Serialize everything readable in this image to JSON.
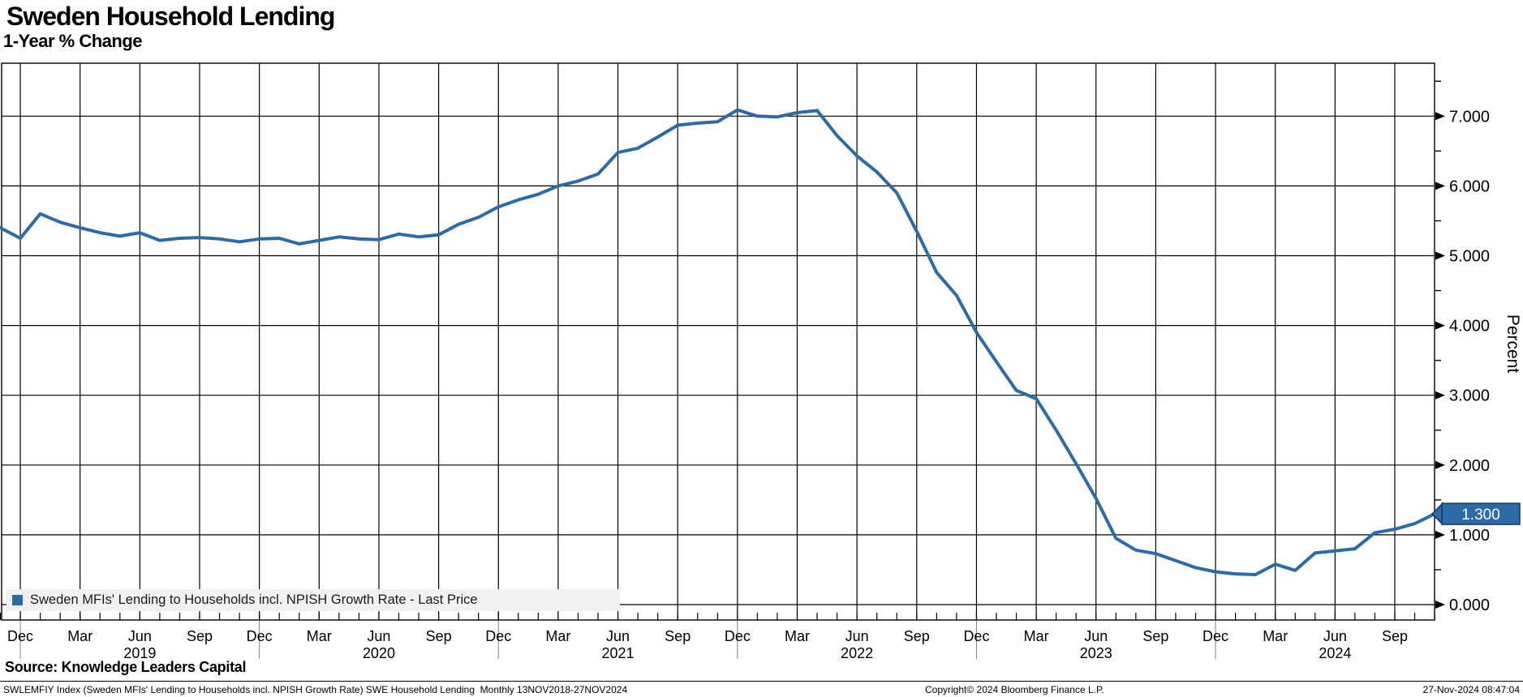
{
  "header": {
    "title": "Sweden Household Lending",
    "subtitle": "1-Year % Change"
  },
  "legend": {
    "label": "Sweden MFIs' Lending to Households incl. NPISH Growth Rate - Last Price",
    "marker_color": "#2d6aa8"
  },
  "source_note": "Source: Knowledge Leaders Capital",
  "footer": {
    "left": "SWLEMFIY Index (Sweden MFIs' Lending to Households incl. NPISH Growth Rate) SWE Household Lending  Monthly 13NOV2018-27NOV2024",
    "center": "Copyright© 2024 Bloomberg Finance L.P.",
    "right": "27-Nov-2024 08:47:04"
  },
  "chart_data": {
    "type": "line",
    "title": "Sweden Household Lending",
    "subtitle": "1-Year % Change",
    "ylabel": "Percent",
    "ylim": [
      -0.22,
      7.76
    ],
    "grid": true,
    "legend_position": "bottom-left",
    "x_start": "Nov 2018",
    "x_end": "Nov 2024",
    "x_frequency": "Monthly",
    "x_quarter_labels": [
      "Dec",
      "Mar",
      "Jun",
      "Sep",
      "Dec",
      "Mar",
      "Jun",
      "Sep",
      "Dec",
      "Mar",
      "Jun",
      "Sep",
      "Dec",
      "Mar",
      "Jun",
      "Sep",
      "Dec",
      "Mar",
      "Jun",
      "Sep",
      "Dec",
      "Mar",
      "Jun",
      "Sep"
    ],
    "year_labels": [
      "2019",
      "2020",
      "2021",
      "2022",
      "2023",
      "2024"
    ],
    "y_tick_labels": [
      "0.000",
      "1.000",
      "2.000",
      "3.000",
      "4.000",
      "5.000",
      "6.000",
      "7.000"
    ],
    "last_price": 1.3,
    "last_price_label": "1.300",
    "series": [
      {
        "name": "Sweden MFIs' Lending to Households incl. NPISH Growth Rate - Last Price",
        "color": "#2d6aa8",
        "values": [
          5.4,
          5.25,
          5.6,
          5.48,
          5.4,
          5.33,
          5.28,
          5.33,
          5.22,
          5.25,
          5.26,
          5.24,
          5.2,
          5.24,
          5.25,
          5.17,
          5.22,
          5.27,
          5.24,
          5.23,
          5.31,
          5.27,
          5.3,
          5.45,
          5.55,
          5.7,
          5.8,
          5.88,
          6.0,
          6.07,
          6.17,
          6.48,
          6.54,
          6.7,
          6.87,
          6.9,
          6.92,
          7.09,
          7.0,
          6.99,
          7.05,
          7.08,
          6.72,
          6.43,
          6.2,
          5.9,
          5.35,
          4.76,
          4.43,
          3.9,
          3.48,
          3.07,
          2.95,
          2.5,
          2.02,
          1.52,
          0.95,
          0.78,
          0.73,
          0.63,
          0.53,
          0.47,
          0.44,
          0.43,
          0.58,
          0.49,
          0.74,
          0.77,
          0.8,
          1.03,
          1.08,
          1.16,
          1.3
        ]
      }
    ]
  }
}
